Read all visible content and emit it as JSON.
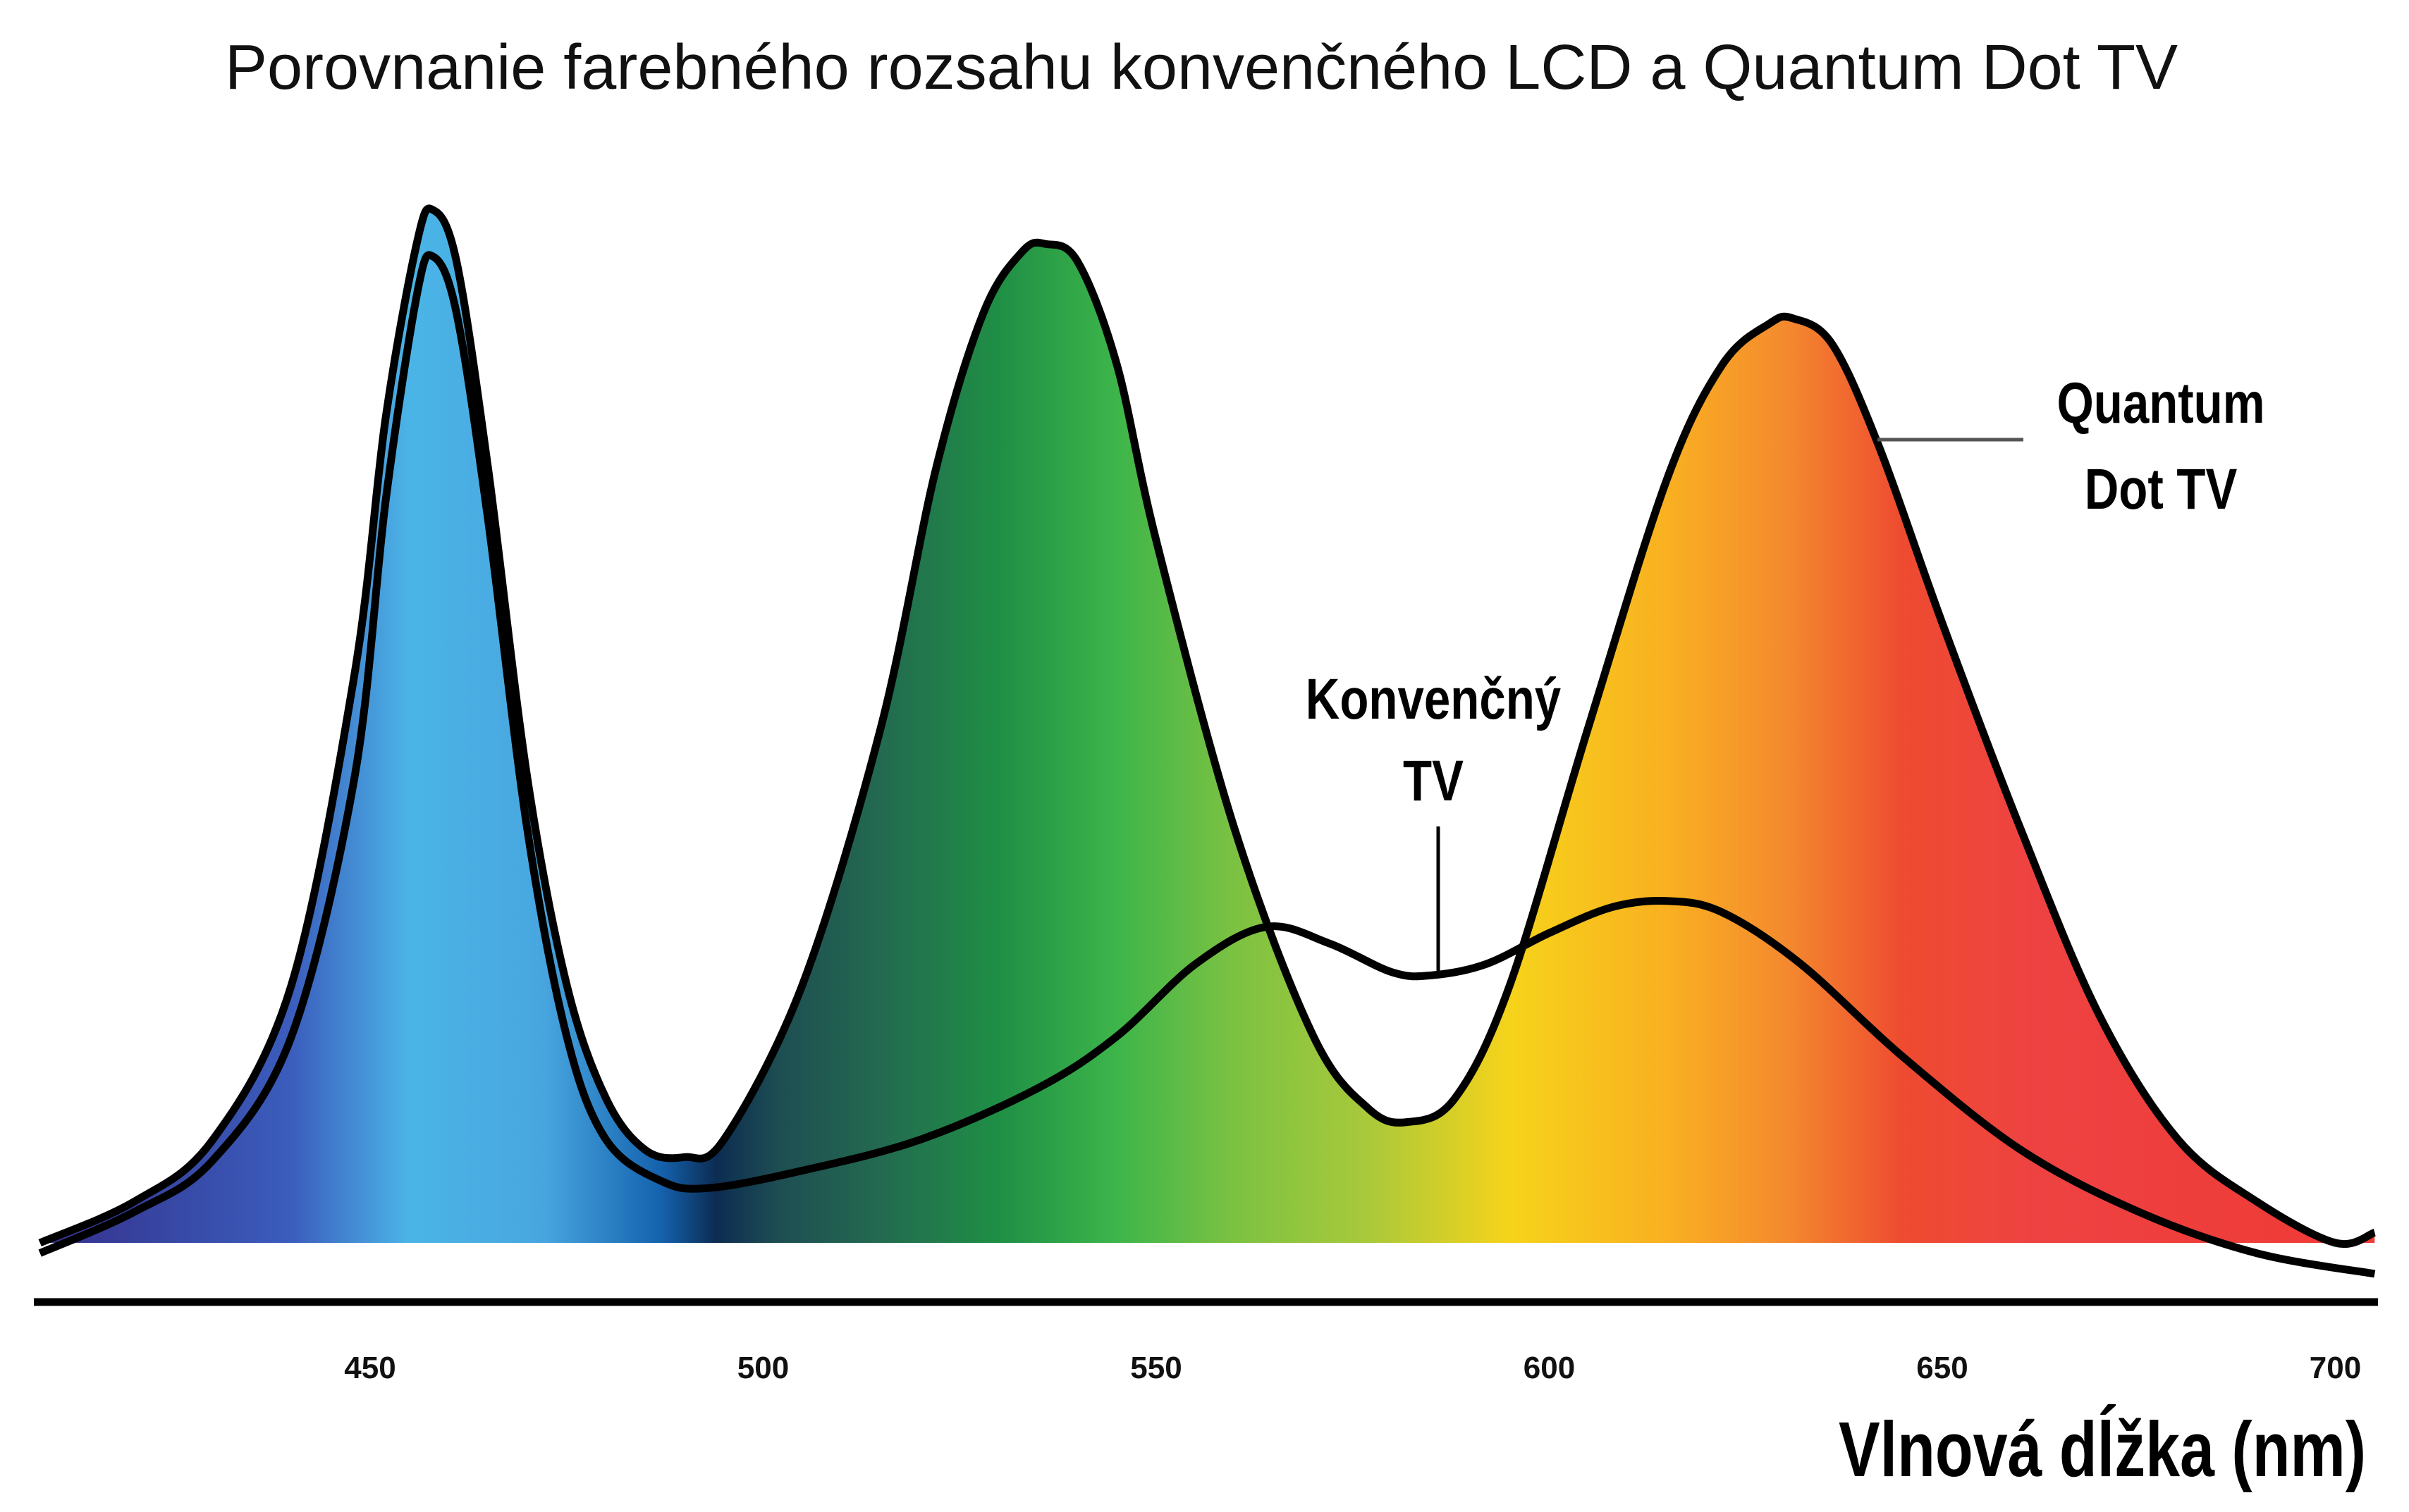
{
  "chart_data": {
    "type": "line",
    "title": "Porovnanie farebného rozsahu konvenčného LCD a Quantum Dot TV",
    "xlabel": "Vlnová dĺžka (nm)",
    "ylabel": "",
    "xlim": [
      408,
      705
    ],
    "ylim": [
      0,
      1
    ],
    "xticks": [
      450,
      500,
      550,
      600,
      650,
      700
    ],
    "grid": false,
    "series": [
      {
        "name": "Quantum Dot TV",
        "label_lines": [
          "Quantum",
          "Dot TV"
        ],
        "filled": true,
        "x": [
          408,
          420,
          430,
          440,
          448,
          452,
          456,
          458,
          461,
          465,
          470,
          475,
          480,
          485,
          490,
          495,
          505,
          515,
          522,
          528,
          533,
          536,
          540,
          545,
          550,
          560,
          570,
          577,
          582,
          588,
          595,
          605,
          615,
          622,
          628,
          631,
          636,
          642,
          650,
          660,
          670,
          680,
          690,
          700,
          705
        ],
        "y": [
          0.0,
          0.04,
          0.1,
          0.25,
          0.55,
          0.8,
          0.97,
          1.0,
          0.95,
          0.75,
          0.45,
          0.25,
          0.14,
          0.09,
          0.083,
          0.1,
          0.25,
          0.5,
          0.75,
          0.9,
          0.96,
          0.967,
          0.95,
          0.85,
          0.68,
          0.4,
          0.2,
          0.13,
          0.117,
          0.14,
          0.25,
          0.5,
          0.74,
          0.85,
          0.89,
          0.895,
          0.87,
          0.77,
          0.6,
          0.4,
          0.22,
          0.1,
          0.04,
          0.0,
          0.01
        ]
      },
      {
        "name": "Konvenčný TV",
        "label_lines": [
          "Konvenčný",
          "TV"
        ],
        "filled": false,
        "x": [
          408,
          420,
          430,
          440,
          448,
          452,
          456,
          458,
          461,
          465,
          470,
          475,
          480,
          487,
          493,
          505,
          520,
          535,
          545,
          555,
          564,
          572,
          580,
          585,
          592,
          600,
          608,
          615,
          622,
          632,
          645,
          660,
          675,
          690,
          705
        ],
        "y": [
          -0.01,
          0.03,
          0.08,
          0.2,
          0.45,
          0.72,
          0.92,
          0.955,
          0.9,
          0.7,
          0.4,
          0.2,
          0.1,
          0.06,
          0.053,
          0.07,
          0.1,
          0.15,
          0.2,
          0.27,
          0.306,
          0.29,
          0.262,
          0.259,
          0.27,
          0.3,
          0.325,
          0.331,
          0.32,
          0.27,
          0.18,
          0.09,
          0.03,
          -0.01,
          -0.03
        ]
      }
    ],
    "spectrum_colors": [
      {
        "nm": 408,
        "color": "#34308a"
      },
      {
        "nm": 440,
        "color": "#3b5dbd"
      },
      {
        "nm": 455,
        "color": "#4bb5e7"
      },
      {
        "nm": 472,
        "color": "#48a6df"
      },
      {
        "nm": 487,
        "color": "#1462ae"
      },
      {
        "nm": 494,
        "color": "#0c2c52"
      },
      {
        "nm": 502,
        "color": "#1e4e52"
      },
      {
        "nm": 515,
        "color": "#236a50"
      },
      {
        "nm": 530,
        "color": "#1f8f45"
      },
      {
        "nm": 545,
        "color": "#3db54a"
      },
      {
        "nm": 560,
        "color": "#7cc242"
      },
      {
        "nm": 577,
        "color": "#a9c93a"
      },
      {
        "nm": 595,
        "color": "#f6d31a"
      },
      {
        "nm": 615,
        "color": "#f9b021"
      },
      {
        "nm": 630,
        "color": "#f48a2e"
      },
      {
        "nm": 645,
        "color": "#ee4b30"
      },
      {
        "nm": 662,
        "color": "#ee4242"
      },
      {
        "nm": 705,
        "color": "#ef3a35"
      }
    ]
  }
}
